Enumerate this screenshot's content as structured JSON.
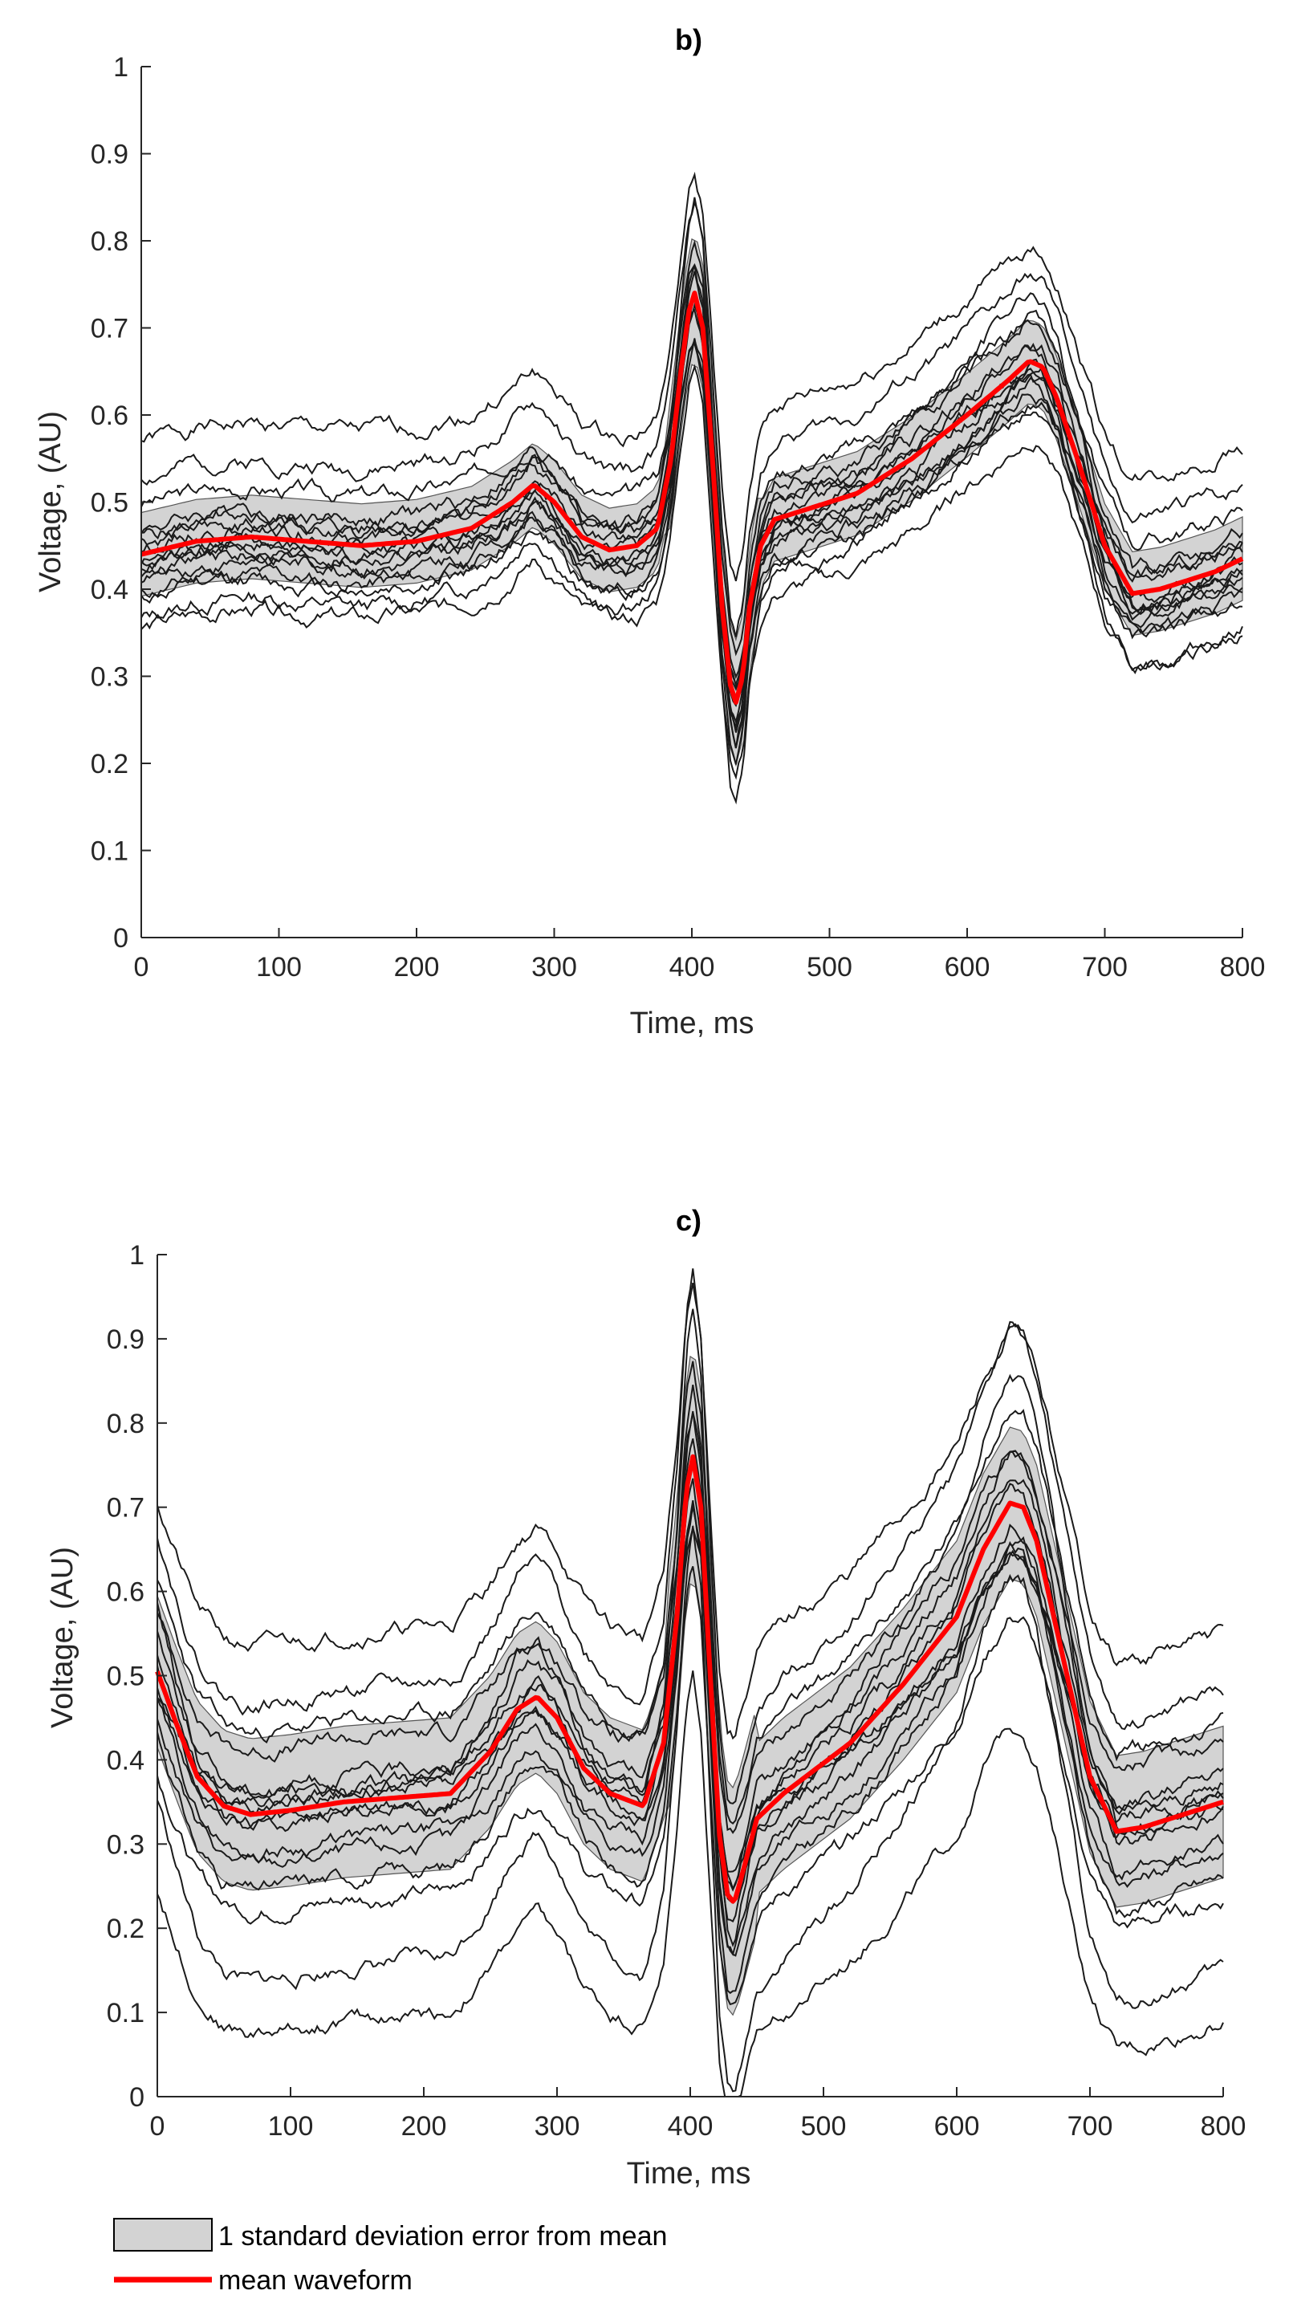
{
  "chart_data": [
    {
      "type": "line",
      "title": "b)",
      "xlabel": "Time, ms",
      "ylabel": "Voltage, (AU)",
      "xlim": [
        0,
        800
      ],
      "ylim": [
        0,
        1
      ],
      "xticks": [
        0,
        100,
        200,
        300,
        400,
        500,
        600,
        700,
        800
      ],
      "xtick_labels": [
        "0",
        "100",
        "200",
        "300",
        "400",
        "500",
        "600",
        "700",
        "800"
      ],
      "yticks": [
        0,
        0.1,
        0.2,
        0.3,
        0.4,
        0.5,
        0.6,
        0.7,
        0.8,
        0.9,
        1
      ],
      "ytick_labels": [
        "0",
        "0.1",
        "0.2",
        "0.3",
        "0.4",
        "0.5",
        "0.6",
        "0.7",
        "0.8",
        "0.9",
        "1"
      ],
      "band_sd": 0.048,
      "mean": {
        "name": "mean waveform",
        "color": "#ff0000",
        "x": [
          0,
          40,
          80,
          120,
          160,
          200,
          240,
          270,
          285,
          300,
          320,
          340,
          360,
          375,
          385,
          392,
          398,
          402,
          408,
          415,
          422,
          428,
          432,
          437,
          442,
          450,
          460,
          480,
          520,
          560,
          600,
          630,
          645,
          655,
          665,
          680,
          700,
          720,
          740,
          760,
          780,
          800
        ],
        "y": [
          0.44,
          0.455,
          0.46,
          0.455,
          0.45,
          0.455,
          0.47,
          0.5,
          0.52,
          0.5,
          0.46,
          0.445,
          0.45,
          0.47,
          0.55,
          0.65,
          0.72,
          0.74,
          0.7,
          0.55,
          0.38,
          0.29,
          0.27,
          0.3,
          0.38,
          0.45,
          0.48,
          0.49,
          0.51,
          0.55,
          0.6,
          0.64,
          0.662,
          0.655,
          0.62,
          0.55,
          0.45,
          0.395,
          0.4,
          0.41,
          0.42,
          0.435
        ]
      },
      "traces": [
        {
          "offset": 0.13,
          "scale": 1.0,
          "seed": 1
        },
        {
          "offset": 0.09,
          "scale": 1.05,
          "seed": 2
        },
        {
          "offset": 0.055,
          "scale": 0.95,
          "seed": 3
        },
        {
          "offset": 0.035,
          "scale": 1.1,
          "seed": 4
        },
        {
          "offset": 0.02,
          "scale": 1.0,
          "seed": 5
        },
        {
          "offset": 0.01,
          "scale": 0.9,
          "seed": 6
        },
        {
          "offset": 0.0,
          "scale": 1.15,
          "seed": 7
        },
        {
          "offset": -0.01,
          "scale": 1.0,
          "seed": 8
        },
        {
          "offset": -0.02,
          "scale": 1.05,
          "seed": 9
        },
        {
          "offset": -0.03,
          "scale": 0.95,
          "seed": 10
        },
        {
          "offset": -0.04,
          "scale": 1.1,
          "seed": 11
        },
        {
          "offset": -0.05,
          "scale": 1.0,
          "seed": 12
        },
        {
          "offset": -0.06,
          "scale": 1.25,
          "seed": 13
        },
        {
          "offset": -0.085,
          "scale": 1.0,
          "seed": 14
        },
        {
          "offset": 0.025,
          "scale": 1.35,
          "seed": 15
        },
        {
          "offset": -0.02,
          "scale": 0.85,
          "seed": 16
        }
      ]
    },
    {
      "type": "line",
      "title": "c)",
      "xlabel": "Time, ms",
      "ylabel": "Voltage, (AU)",
      "xlim": [
        0,
        800
      ],
      "ylim": [
        0,
        1
      ],
      "xticks": [
        0,
        100,
        200,
        300,
        400,
        500,
        600,
        700,
        800
      ],
      "xtick_labels": [
        "0",
        "100",
        "200",
        "300",
        "400",
        "500",
        "600",
        "700",
        "800"
      ],
      "yticks": [
        0,
        0.1,
        0.2,
        0.3,
        0.4,
        0.5,
        0.6,
        0.7,
        0.8,
        0.9,
        1
      ],
      "ytick_labels": [
        "0",
        "0.1",
        "0.2",
        "0.3",
        "0.4",
        "0.5",
        "0.6",
        "0.7",
        "0.8",
        "0.9",
        "1"
      ],
      "band_sd": 0.09,
      "mean": {
        "name": "mean waveform",
        "color": "#ff0000",
        "x": [
          0,
          15,
          30,
          50,
          70,
          100,
          140,
          180,
          220,
          250,
          270,
          285,
          300,
          320,
          340,
          365,
          380,
          390,
          397,
          402,
          408,
          415,
          422,
          428,
          433,
          440,
          450,
          470,
          520,
          560,
          600,
          620,
          640,
          650,
          660,
          680,
          700,
          720,
          740,
          760,
          780,
          800
        ],
        "y": [
          0.505,
          0.44,
          0.38,
          0.345,
          0.335,
          0.34,
          0.35,
          0.355,
          0.36,
          0.41,
          0.46,
          0.475,
          0.45,
          0.39,
          0.36,
          0.345,
          0.42,
          0.57,
          0.72,
          0.76,
          0.7,
          0.5,
          0.31,
          0.24,
          0.23,
          0.27,
          0.33,
          0.36,
          0.42,
          0.49,
          0.57,
          0.65,
          0.705,
          0.7,
          0.66,
          0.52,
          0.38,
          0.315,
          0.32,
          0.33,
          0.34,
          0.35
        ]
      },
      "traces": [
        {
          "offset": 0.2,
          "scale": 1.0,
          "seed": 21
        },
        {
          "offset": 0.15,
          "scale": 1.2,
          "seed": 22
        },
        {
          "offset": 0.1,
          "scale": 1.05,
          "seed": 23
        },
        {
          "offset": 0.07,
          "scale": 0.95,
          "seed": 24
        },
        {
          "offset": 0.04,
          "scale": 1.1,
          "seed": 25
        },
        {
          "offset": 0.02,
          "scale": 1.0,
          "seed": 26
        },
        {
          "offset": 0.0,
          "scale": 1.15,
          "seed": 27
        },
        {
          "offset": -0.02,
          "scale": 0.9,
          "seed": 28
        },
        {
          "offset": -0.04,
          "scale": 1.05,
          "seed": 29
        },
        {
          "offset": -0.06,
          "scale": 1.0,
          "seed": 30
        },
        {
          "offset": -0.08,
          "scale": 1.1,
          "seed": 31
        },
        {
          "offset": -0.12,
          "scale": 0.95,
          "seed": 32
        },
        {
          "offset": -0.17,
          "scale": 1.3,
          "seed": 33
        },
        {
          "offset": -0.26,
          "scale": 1.0,
          "seed": 34
        },
        {
          "offset": 0.05,
          "scale": 1.4,
          "seed": 35
        },
        {
          "offset": -0.01,
          "scale": 0.8,
          "seed": 36
        }
      ]
    }
  ],
  "legend": {
    "band_label": "1 standard deviation error from mean",
    "mean_label": "mean waveform",
    "band_color": "#d3d3d3",
    "mean_color": "#ff0000"
  }
}
